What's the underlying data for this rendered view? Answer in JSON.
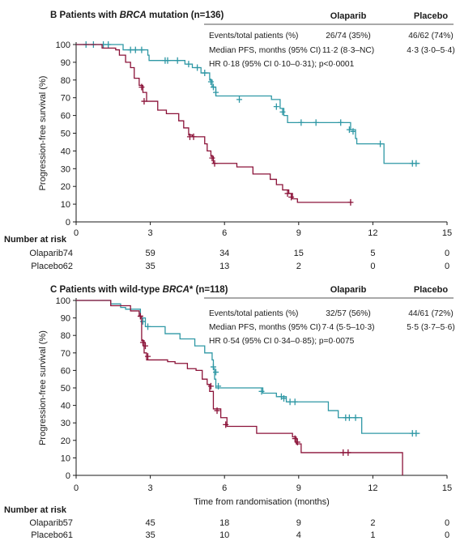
{
  "colors": {
    "olaparib": "#2f98a5",
    "placebo": "#8b1238",
    "axis": "#1a1a1a"
  },
  "xlabel": "Time from randomisation (months)",
  "chart_data": [
    {
      "type": "line",
      "panel_letter": "B",
      "title_pre": "Patients with ",
      "title_em": "BRCA",
      "title_post": " mutation (n=136)",
      "ylabel": "Progression-free survival (%)",
      "xlim": [
        0,
        15
      ],
      "ylim": [
        0,
        100
      ],
      "xticks": [
        0,
        3,
        6,
        9,
        12,
        15
      ],
      "yticks": [
        0,
        10,
        20,
        30,
        40,
        50,
        60,
        70,
        80,
        90,
        100
      ],
      "stats": {
        "headers": [
          "Olaparib",
          "Placebo"
        ],
        "rows": [
          {
            "label": "Events/total patients (%)",
            "olaparib": "26/74 (35%)",
            "placebo": "46/62 (74%)"
          },
          {
            "label": "Median PFS, months (95% CI)",
            "olaparib": "11·2 (8·3–NC)",
            "placebo": "4·3 (3·0–5·4)"
          }
        ],
        "hr": "HR 0·18 (95% CI 0·10–0·31); p<0·0001"
      },
      "series": [
        {
          "key": "olaparib",
          "steps": [
            [
              0,
              100
            ],
            [
              1.9,
              97
            ],
            [
              2.9,
              94
            ],
            [
              2.95,
              91
            ],
            [
              4.4,
              89
            ],
            [
              4.7,
              87
            ],
            [
              5.05,
              84
            ],
            [
              5.4,
              80
            ],
            [
              5.5,
              76
            ],
            [
              5.65,
              71
            ],
            [
              7.9,
              69
            ],
            [
              8.25,
              64
            ],
            [
              8.4,
              60
            ],
            [
              8.55,
              56
            ],
            [
              11.1,
              52
            ],
            [
              11.3,
              47
            ],
            [
              11.35,
              44
            ],
            [
              12.45,
              33
            ],
            [
              13.9,
              33
            ]
          ],
          "censor": [
            [
              0.4,
              100
            ],
            [
              0.7,
              100
            ],
            [
              1.1,
              100
            ],
            [
              1.3,
              100
            ],
            [
              2.2,
              97
            ],
            [
              2.4,
              97
            ],
            [
              2.65,
              97
            ],
            [
              3.6,
              91
            ],
            [
              3.7,
              91
            ],
            [
              4.1,
              91
            ],
            [
              4.55,
              89
            ],
            [
              4.9,
              87
            ],
            [
              5.2,
              84
            ],
            [
              5.45,
              79
            ],
            [
              5.55,
              76
            ],
            [
              5.65,
              73
            ],
            [
              6.6,
              69
            ],
            [
              8.1,
              65
            ],
            [
              8.35,
              62
            ],
            [
              9.1,
              56
            ],
            [
              9.7,
              56
            ],
            [
              10.7,
              56
            ],
            [
              11.05,
              52
            ],
            [
              11.2,
              51
            ],
            [
              12.3,
              44
            ],
            [
              13.6,
              33
            ],
            [
              13.75,
              33
            ]
          ]
        },
        {
          "key": "placebo",
          "steps": [
            [
              0,
              100
            ],
            [
              1.05,
              98
            ],
            [
              1.6,
              97
            ],
            [
              1.75,
              94
            ],
            [
              2.0,
              90
            ],
            [
              2.2,
              87
            ],
            [
              2.35,
              81
            ],
            [
              2.55,
              77
            ],
            [
              2.7,
              73
            ],
            [
              2.85,
              68
            ],
            [
              3.3,
              63
            ],
            [
              3.65,
              61
            ],
            [
              4.15,
              57
            ],
            [
              4.35,
              53
            ],
            [
              4.55,
              49
            ],
            [
              4.7,
              48
            ],
            [
              5.2,
              44
            ],
            [
              5.3,
              40
            ],
            [
              5.45,
              37
            ],
            [
              5.55,
              33
            ],
            [
              6.5,
              31
            ],
            [
              7.15,
              27
            ],
            [
              7.85,
              24
            ],
            [
              8.1,
              21
            ],
            [
              8.35,
              18
            ],
            [
              8.6,
              16
            ],
            [
              8.75,
              13
            ],
            [
              8.95,
              11
            ],
            [
              11.15,
              11
            ]
          ],
          "censor": [
            [
              2.65,
              76
            ],
            [
              2.75,
              68
            ],
            [
              4.6,
              48
            ],
            [
              4.75,
              48
            ],
            [
              5.5,
              36
            ],
            [
              5.6,
              33
            ],
            [
              8.55,
              16
            ],
            [
              8.7,
              14
            ],
            [
              11.1,
              11
            ]
          ]
        }
      ],
      "risk": {
        "header": "Number at risk",
        "times": [
          0,
          3,
          6,
          9,
          12,
          15
        ],
        "rows": [
          {
            "label": "Olaparib",
            "values": [
              "74",
              "59",
              "34",
              "15",
              "5",
              "0"
            ]
          },
          {
            "label": "Placebo",
            "values": [
              "62",
              "35",
              "13",
              "2",
              "0",
              "0"
            ]
          }
        ]
      }
    },
    {
      "type": "line",
      "panel_letter": "C",
      "title_pre": "Patients with wild-type ",
      "title_em": "BRCA",
      "title_post": "* (n=118)",
      "ylabel": "Progression-free survival (%)",
      "xlim": [
        0,
        15
      ],
      "ylim": [
        0,
        100
      ],
      "xticks": [
        0,
        3,
        6,
        9,
        12,
        15
      ],
      "yticks": [
        0,
        10,
        20,
        30,
        40,
        50,
        60,
        70,
        80,
        90,
        100
      ],
      "stats": {
        "headers": [
          "Olaparib",
          "Placebo"
        ],
        "rows": [
          {
            "label": "Events/total patients (%)",
            "olaparib": "32/57 (56%)",
            "placebo": "44/61 (72%)"
          },
          {
            "label": "Median PFS, months (95% CI)",
            "olaparib": "7·4 (5·5–10·3)",
            "placebo": "5·5 (3·7–5·6)"
          }
        ],
        "hr": "HR 0·54 (95% CI 0·34–0·85); p=0·0075"
      },
      "series": [
        {
          "key": "olaparib",
          "steps": [
            [
              0,
              100
            ],
            [
              1.4,
              98
            ],
            [
              1.8,
              96
            ],
            [
              2.0,
              95
            ],
            [
              2.6,
              90
            ],
            [
              2.8,
              85
            ],
            [
              3.6,
              81
            ],
            [
              4.2,
              78
            ],
            [
              4.8,
              74
            ],
            [
              5.2,
              70
            ],
            [
              5.5,
              66
            ],
            [
              5.55,
              61
            ],
            [
              5.6,
              55
            ],
            [
              5.65,
              50
            ],
            [
              7.55,
              47
            ],
            [
              8.1,
              45
            ],
            [
              8.5,
              42
            ],
            [
              10.2,
              37
            ],
            [
              10.6,
              33
            ],
            [
              11.55,
              24
            ],
            [
              13.9,
              24
            ]
          ],
          "censor": [
            [
              2.7,
              88
            ],
            [
              2.9,
              85
            ],
            [
              5.55,
              62
            ],
            [
              5.65,
              59
            ],
            [
              5.75,
              51
            ],
            [
              7.5,
              48
            ],
            [
              8.3,
              45
            ],
            [
              8.4,
              44
            ],
            [
              8.65,
              42
            ],
            [
              8.85,
              42
            ],
            [
              10.9,
              33
            ],
            [
              11.05,
              33
            ],
            [
              11.3,
              33
            ],
            [
              13.6,
              24
            ],
            [
              13.75,
              24
            ]
          ]
        },
        {
          "key": "placebo",
          "steps": [
            [
              0,
              100
            ],
            [
              1.4,
              97
            ],
            [
              2.2,
              94
            ],
            [
              2.55,
              91
            ],
            [
              2.65,
              77
            ],
            [
              2.75,
              70
            ],
            [
              2.85,
              66
            ],
            [
              3.7,
              65
            ],
            [
              4.0,
              64
            ],
            [
              4.5,
              61
            ],
            [
              4.85,
              60
            ],
            [
              5.1,
              55
            ],
            [
              5.3,
              52
            ],
            [
              5.4,
              48
            ],
            [
              5.55,
              38
            ],
            [
              5.85,
              33
            ],
            [
              6.1,
              28
            ],
            [
              6.4,
              28
            ],
            [
              7.3,
              24
            ],
            [
              8.75,
              22
            ],
            [
              8.9,
              18
            ],
            [
              9.1,
              13
            ],
            [
              13.2,
              13
            ],
            [
              13.2,
              0
            ]
          ],
          "censor": [
            [
              2.6,
              91
            ],
            [
              2.7,
              76
            ],
            [
              2.8,
              74
            ],
            [
              2.9,
              68
            ],
            [
              5.45,
              51
            ],
            [
              5.7,
              37
            ],
            [
              6.05,
              29
            ],
            [
              8.85,
              21
            ],
            [
              8.95,
              19
            ],
            [
              10.8,
              13
            ],
            [
              11.0,
              13
            ]
          ]
        }
      ],
      "risk": {
        "header": "Number at risk",
        "times": [
          0,
          3,
          6,
          9,
          12,
          15
        ],
        "rows": [
          {
            "label": "Olaparib",
            "values": [
              "57",
              "45",
              "18",
              "9",
              "2",
              "0"
            ]
          },
          {
            "label": "Placebo",
            "values": [
              "61",
              "35",
              "10",
              "4",
              "1",
              "0"
            ]
          }
        ]
      }
    }
  ]
}
